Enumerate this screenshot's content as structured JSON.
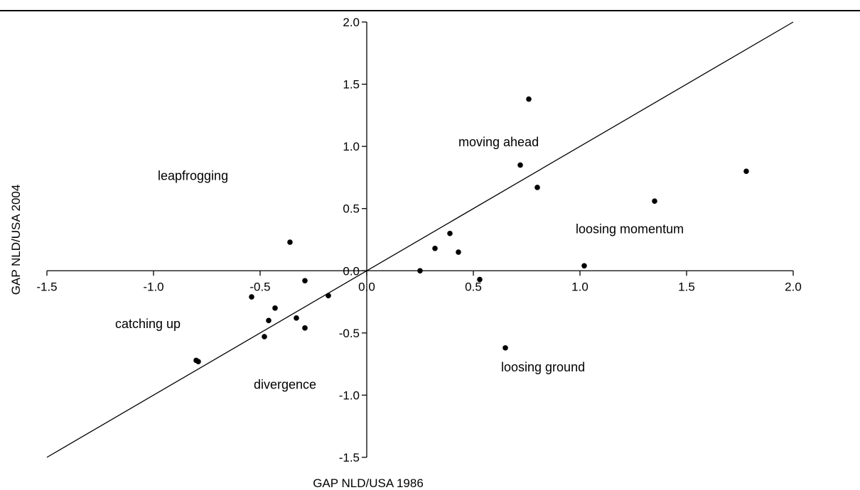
{
  "chart_data": {
    "type": "scatter",
    "title": "",
    "xlabel": "GAP NLD/USA 1986",
    "ylabel": "GAP NLD/USA 2004",
    "xlim": [
      -1.5,
      2.0
    ],
    "ylim": [
      -1.5,
      2.0
    ],
    "x_ticks": [
      "-1.5",
      "-1.0",
      "-0.5",
      "0.0",
      "0.5",
      "1.0",
      "1.5",
      "2.0"
    ],
    "y_ticks": [
      "-1.5",
      "-1.0",
      "-0.5",
      "0.0",
      "0.5",
      "1.0",
      "1.5",
      "2.0"
    ],
    "grid": false,
    "legend": "none",
    "reference_line": {
      "from": [
        -1.5,
        -1.5
      ],
      "to": [
        2.0,
        2.0
      ]
    },
    "annotations": [
      {
        "text": "moving ahead",
        "x": 0.43,
        "y": 1.0
      },
      {
        "text": "leapfrogging",
        "x": -0.98,
        "y": 0.73
      },
      {
        "text": "loosing momentum",
        "x": 0.98,
        "y": 0.3
      },
      {
        "text": "catching up",
        "x": -1.18,
        "y": -0.46
      },
      {
        "text": "divergence",
        "x": -0.53,
        "y": -0.95
      },
      {
        "text": "loosing ground",
        "x": 0.63,
        "y": -0.81
      }
    ],
    "points": [
      {
        "x": 0.76,
        "y": 1.38
      },
      {
        "x": 0.72,
        "y": 0.85
      },
      {
        "x": 0.8,
        "y": 0.67
      },
      {
        "x": 1.78,
        "y": 0.8
      },
      {
        "x": 1.35,
        "y": 0.56
      },
      {
        "x": 0.39,
        "y": 0.3
      },
      {
        "x": 0.32,
        "y": 0.18
      },
      {
        "x": 0.43,
        "y": 0.15
      },
      {
        "x": 1.02,
        "y": 0.04
      },
      {
        "x": 0.25,
        "y": 0.0
      },
      {
        "x": 0.53,
        "y": -0.07
      },
      {
        "x": 0.65,
        "y": -0.62
      },
      {
        "x": -0.36,
        "y": 0.23
      },
      {
        "x": -0.29,
        "y": -0.08
      },
      {
        "x": -0.18,
        "y": -0.2
      },
      {
        "x": -0.54,
        "y": -0.21
      },
      {
        "x": -0.43,
        "y": -0.3
      },
      {
        "x": -0.33,
        "y": -0.38
      },
      {
        "x": -0.46,
        "y": -0.4
      },
      {
        "x": -0.29,
        "y": -0.46
      },
      {
        "x": -0.48,
        "y": -0.53
      },
      {
        "x": -0.8,
        "y": -0.72
      },
      {
        "x": -0.79,
        "y": -0.73
      }
    ]
  }
}
